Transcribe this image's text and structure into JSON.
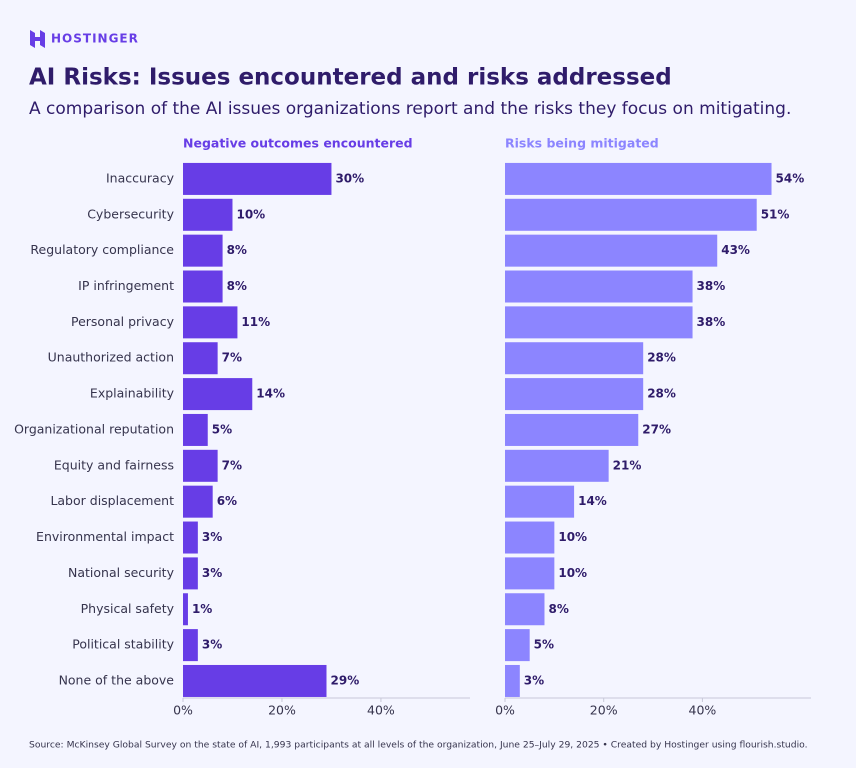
{
  "header": {
    "brand": "HOSTINGER",
    "title": "AI Risks: Issues encountered and risks addressed",
    "subtitle": "A comparison of the AI issues organizations report and the risks they focus on mitigating."
  },
  "chart_data": [
    {
      "type": "bar",
      "orientation": "horizontal",
      "title": "Negative outcomes encountered",
      "color": "#673de6",
      "categories": [
        "Inaccuracy",
        "Cybersecurity",
        "Regulatory compliance",
        "IP infringement",
        "Personal privacy",
        "Unauthorized action",
        "Explainability",
        "Organizational reputation",
        "Equity and fairness",
        "Labor displacement",
        "Environmental impact",
        "National security",
        "Physical safety",
        "Political stability",
        "None of the above"
      ],
      "values": [
        30,
        10,
        8,
        8,
        11,
        7,
        14,
        5,
        7,
        6,
        3,
        3,
        1,
        3,
        29
      ],
      "value_labels": [
        "30%",
        "10%",
        "8%",
        "8%",
        "11%",
        "7%",
        "14%",
        "5%",
        "7%",
        "6%",
        "3%",
        "3%",
        "1%",
        "3%",
        "29%"
      ],
      "xlim": [
        0,
        58
      ],
      "xticks": [
        {
          "value": 0,
          "label": "0%"
        },
        {
          "value": 20,
          "label": "20%"
        },
        {
          "value": 40,
          "label": "40%"
        }
      ]
    },
    {
      "type": "bar",
      "orientation": "horizontal",
      "title": "Risks being mitigated",
      "color": "#8c85ff",
      "values": [
        54,
        51,
        43,
        38,
        38,
        28,
        28,
        27,
        21,
        14,
        10,
        10,
        8,
        5,
        3
      ],
      "value_labels": [
        "54%",
        "51%",
        "43%",
        "38%",
        "38%",
        "28%",
        "28%",
        "27%",
        "21%",
        "14%",
        "10%",
        "10%",
        "8%",
        "5%",
        "3%"
      ],
      "xlim": [
        0,
        62
      ],
      "xticks": [
        {
          "value": 0,
          "label": "0%"
        },
        {
          "value": 20,
          "label": "20%"
        },
        {
          "value": 40,
          "label": "40%"
        }
      ]
    }
  ],
  "footer": {
    "source": "Source: McKinsey Global Survey on the state of AI, 1,993 participants at all levels of the organization, June 25–July 29, 2025 • Created by Hostinger using flourish.studio."
  }
}
